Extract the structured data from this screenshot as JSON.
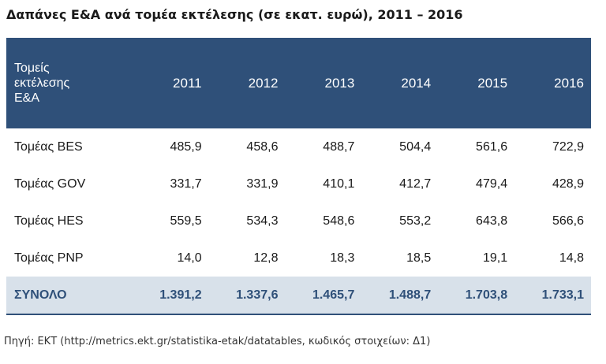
{
  "title": "Δαπάνες Ε&Α ανά τομέα εκτέλεσης (σε εκατ. ευρώ), 2011 – 2016",
  "table": {
    "header_label": [
      "Τομείς",
      "εκτέλεσης",
      "Ε&Α"
    ],
    "years": [
      "2011",
      "2012",
      "2013",
      "2014",
      "2015",
      "2016"
    ],
    "rows": [
      {
        "label": "Τομέας BES",
        "values": [
          "485,9",
          "458,6",
          "488,7",
          "504,4",
          "561,6",
          "722,9"
        ]
      },
      {
        "label": "Τομέας GOV",
        "values": [
          "331,7",
          "331,9",
          "410,1",
          "412,7",
          "479,4",
          "428,9"
        ]
      },
      {
        "label": "Τομέας HES",
        "values": [
          "559,5",
          "534,3",
          "548,6",
          "553,2",
          "643,8",
          "566,6"
        ]
      },
      {
        "label": "Τομέας PNP",
        "values": [
          "14,0",
          "12,8",
          "18,3",
          "18,5",
          "19,1",
          "14,8"
        ]
      }
    ],
    "total": {
      "label": "ΣΥΝΟΛΟ",
      "values": [
        "1.391,2",
        "1.337,6",
        "1.465,7",
        "1.488,7",
        "1.703,8",
        "1.733,1"
      ]
    }
  },
  "source": "Πηγή: ΕΚΤ (http://metrics.ekt.gr/statistika-etak/datatables, κωδικός στοιχείων: Δ1)",
  "colors": {
    "header_bg": "#2f5079",
    "total_bg": "#d8e1ea",
    "total_text": "#2f5079"
  }
}
